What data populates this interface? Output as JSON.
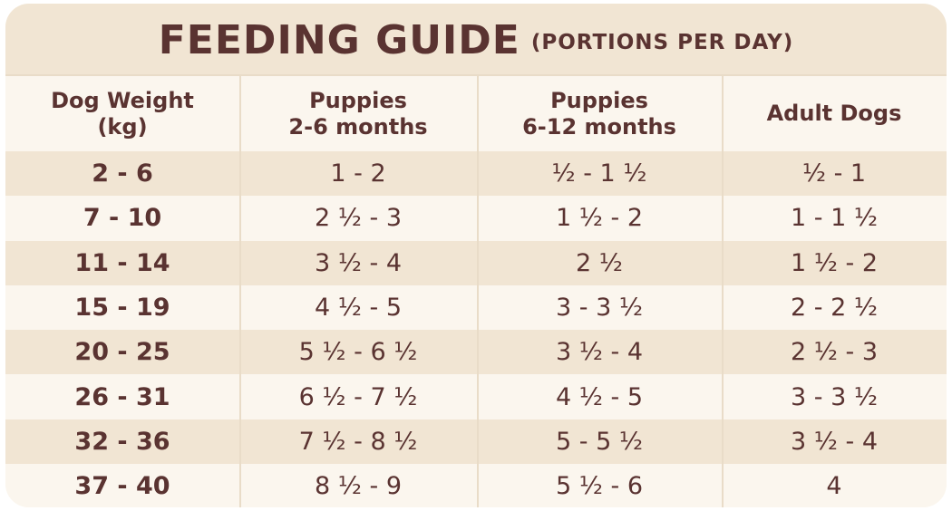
{
  "title": {
    "main": "FEEDING GUIDE",
    "sub": "(PORTIONS PER DAY)"
  },
  "table": {
    "headers": [
      "Dog Weight\n(kg)",
      "Puppies\n2-6 months",
      "Puppies\n6-12 months",
      "Adult Dogs"
    ],
    "rows": [
      [
        "2 - 6",
        "1 - 2",
        "½ - 1 ½",
        "½ - 1"
      ],
      [
        "7 - 10",
        "2 ½ - 3",
        "1 ½ - 2",
        "1 - 1 ½"
      ],
      [
        "11 - 14",
        "3 ½ - 4",
        "2 ½",
        "1 ½ - 2"
      ],
      [
        "15 - 19",
        "4 ½ - 5",
        "3 - 3 ½",
        "2 - 2 ½"
      ],
      [
        "20 - 25",
        "5 ½ - 6 ½",
        "3 ½ - 4",
        "2 ½ - 3"
      ],
      [
        "26 - 31",
        "6 ½ - 7 ½",
        "4 ½ - 5",
        "3 - 3 ½"
      ],
      [
        "32 - 36",
        "7 ½ - 8 ½",
        "5 - 5 ½",
        "3 ½ - 4"
      ],
      [
        "37 - 40",
        "8 ½ - 9",
        "5 ½ - 6",
        "4"
      ]
    ]
  },
  "colors": {
    "text": "#5a3331",
    "band": "#f1e5d3",
    "background": "#fbf6ee",
    "divider": "#e9dcc8"
  }
}
